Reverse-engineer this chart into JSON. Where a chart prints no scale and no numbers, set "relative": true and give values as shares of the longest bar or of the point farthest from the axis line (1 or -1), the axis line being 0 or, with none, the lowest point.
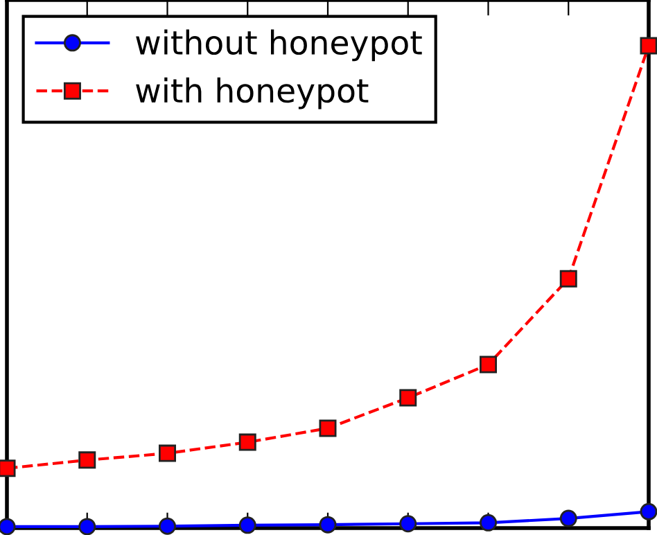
{
  "chart_data": {
    "type": "line",
    "relative": true,
    "categories": [
      null,
      null,
      null,
      null,
      null,
      null,
      null,
      null,
      null
    ],
    "series": [
      {
        "name": "without honeypot",
        "color": "#0000ff",
        "marker": "circle",
        "line_style": "solid",
        "values": [
          0.003,
          0.003,
          0.004,
          0.006,
          0.007,
          0.009,
          0.011,
          0.02,
          0.034
        ]
      },
      {
        "name": "with honeypot",
        "color": "#ff0000",
        "marker": "square",
        "line_style": "dashed",
        "values": [
          0.124,
          0.141,
          0.155,
          0.178,
          0.207,
          0.27,
          0.339,
          0.517,
          1
        ]
      }
    ],
    "legend": "top left",
    "grid": false
  }
}
